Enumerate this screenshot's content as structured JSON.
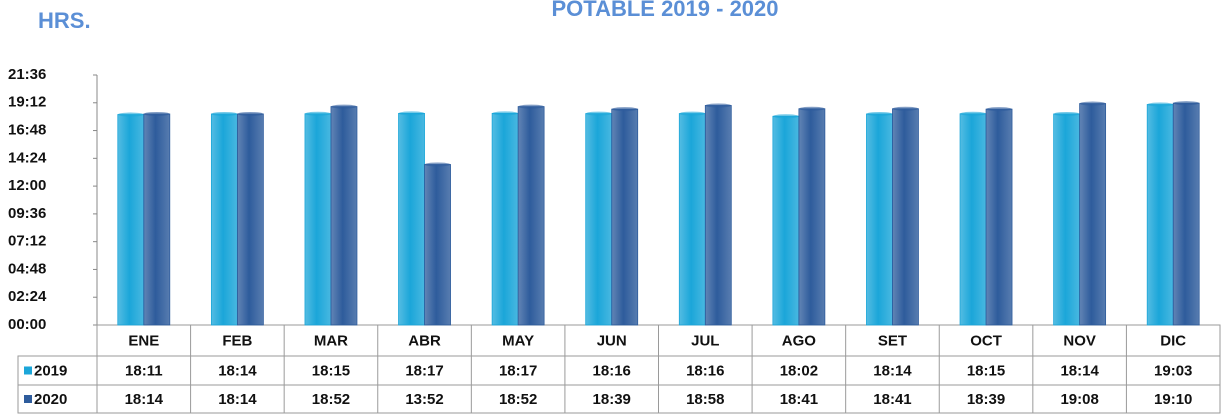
{
  "chart_data": {
    "type": "bar",
    "title": "POTABLE 2019 - 2020",
    "y_label": "HRS.",
    "categories": [
      "ENE",
      "FEB",
      "MAR",
      "ABR",
      "MAY",
      "JUN",
      "JUL",
      "AGO",
      "SET",
      "OCT",
      "NOV",
      "DIC"
    ],
    "series": [
      {
        "name": "2019",
        "color": "#1ba6d9",
        "values": [
          18.1833,
          18.2333,
          18.25,
          18.2833,
          18.2833,
          18.2667,
          18.2667,
          18.0333,
          18.2333,
          18.25,
          18.2333,
          19.05
        ],
        "value_labels": [
          "18:11",
          "18:14",
          "18:15",
          "18:17",
          "18:17",
          "18:16",
          "18:16",
          "18:02",
          "18:14",
          "18:15",
          "18:14",
          "19:03"
        ]
      },
      {
        "name": "2020",
        "color": "#2e5c9c",
        "values": [
          18.2333,
          18.2333,
          18.8667,
          13.8667,
          18.8667,
          18.65,
          18.9667,
          18.6833,
          18.6833,
          18.65,
          19.1333,
          19.1667
        ],
        "value_labels": [
          "18:14",
          "18:14",
          "18:52",
          "13:52",
          "18:52",
          "18:39",
          "18:58",
          "18:41",
          "18:41",
          "18:39",
          "19:08",
          "19:10"
        ]
      }
    ],
    "ylim": [
      0,
      21.6
    ],
    "yticks": [
      {
        "value": 0,
        "label": "00:00"
      },
      {
        "value": 2.4,
        "label": "02:24"
      },
      {
        "value": 4.8,
        "label": "04:48"
      },
      {
        "value": 7.2,
        "label": "07:12"
      },
      {
        "value": 9.6,
        "label": "09:36"
      },
      {
        "value": 12,
        "label": "12:00"
      },
      {
        "value": 14.4,
        "label": "14:24"
      },
      {
        "value": 16.8,
        "label": "16:48"
      },
      {
        "value": 19.2,
        "label": "19:12"
      },
      {
        "value": 21.6,
        "label": "21:36"
      }
    ],
    "grid": false
  }
}
